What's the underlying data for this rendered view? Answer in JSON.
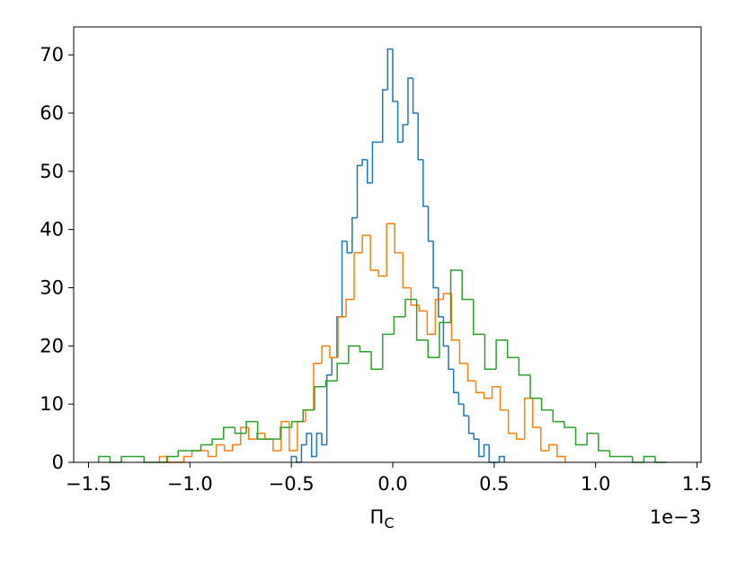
{
  "chart_data": {
    "type": "histogram",
    "histtype": "step",
    "x_label": "Π",
    "x_label_sub": "C",
    "x_offset_text": "1e−3",
    "xlim": [
      -1.573,
      1.52
    ],
    "ylim": [
      0,
      74.8
    ],
    "xticks": [
      {
        "value": -1.5,
        "label": "−1.5"
      },
      {
        "value": -1.0,
        "label": "−1.0"
      },
      {
        "value": -0.5,
        "label": "−0.5"
      },
      {
        "value": 0,
        "label": "0.0"
      },
      {
        "value": 0.5,
        "label": "0.5"
      },
      {
        "value": 1.0,
        "label": "1.0"
      },
      {
        "value": 1.5,
        "label": "1.5"
      }
    ],
    "yticks": [
      0,
      10,
      20,
      30,
      40,
      50,
      60,
      70
    ],
    "series": [
      {
        "color": "#1f77b4",
        "bins": [
          -0.5,
          -0.475,
          -0.45,
          -0.425,
          -0.4,
          -0.375,
          -0.35,
          -0.325,
          -0.3,
          -0.275,
          -0.25,
          -0.225,
          -0.2,
          -0.175,
          -0.15,
          -0.125,
          -0.1,
          -0.075,
          -0.05,
          -0.025,
          0,
          0.025,
          0.05,
          0.075,
          0.1,
          0.125,
          0.15,
          0.175,
          0.2,
          0.225,
          0.25,
          0.275,
          0.3,
          0.325,
          0.35,
          0.375,
          0.4,
          0.425,
          0.45,
          0.475,
          0.5,
          0.525,
          0.55
        ],
        "values": [
          1,
          0,
          3,
          5,
          1,
          5,
          3,
          15,
          18,
          25,
          38,
          36,
          42,
          51,
          52,
          48,
          55,
          55,
          64,
          71,
          62,
          55,
          58,
          66,
          60,
          52,
          44,
          38,
          30,
          25,
          20,
          16,
          12,
          10,
          8,
          5,
          4,
          1,
          3,
          0,
          0,
          1
        ]
      },
      {
        "color": "#ff7f0e",
        "bins": [
          -1.15,
          -1.11,
          -1.07,
          -1.03,
          -0.99,
          -0.95,
          -0.91,
          -0.87,
          -0.83,
          -0.79,
          -0.75,
          -0.71,
          -0.67,
          -0.63,
          -0.59,
          -0.55,
          -0.51,
          -0.47,
          -0.43,
          -0.39,
          -0.35,
          -0.31,
          -0.27,
          -0.23,
          -0.19,
          -0.15,
          -0.11,
          -0.07,
          -0.03,
          0.01,
          0.05,
          0.09,
          0.13,
          0.17,
          0.21,
          0.25,
          0.29,
          0.33,
          0.37,
          0.41,
          0.45,
          0.49,
          0.53,
          0.57,
          0.61,
          0.65,
          0.69,
          0.73,
          0.77,
          0.81,
          0.85
        ],
        "values": [
          1,
          0,
          0,
          1,
          2,
          2,
          1,
          3,
          2,
          3,
          6,
          4,
          5,
          4,
          2,
          7,
          2,
          7,
          9,
          17,
          20,
          18,
          25,
          28,
          36,
          39,
          33,
          32,
          41,
          36,
          30,
          27,
          26,
          22,
          28,
          29,
          21,
          17,
          14,
          12,
          11,
          13,
          9,
          5,
          4,
          11,
          6,
          2,
          3,
          1
        ]
      },
      {
        "color": "#2ca02c",
        "bins": [
          -1.45,
          -1.394,
          -1.338,
          -1.282,
          -1.226,
          -1.17,
          -1.114,
          -1.058,
          -1.002,
          -0.946,
          -0.89,
          -0.834,
          -0.778,
          -0.722,
          -0.666,
          -0.61,
          -0.554,
          -0.498,
          -0.442,
          -0.386,
          -0.33,
          -0.274,
          -0.218,
          -0.162,
          -0.106,
          -0.05,
          0.006,
          0.062,
          0.118,
          0.174,
          0.23,
          0.286,
          0.342,
          0.398,
          0.454,
          0.51,
          0.566,
          0.622,
          0.678,
          0.734,
          0.79,
          0.846,
          0.902,
          0.958,
          1.014,
          1.07,
          1.126,
          1.182,
          1.238,
          1.294,
          1.35
        ],
        "values": [
          1,
          0,
          1,
          1,
          0,
          0,
          1,
          2,
          2,
          3,
          4,
          6,
          5,
          7,
          4,
          4,
          6,
          7,
          9,
          13,
          14,
          17,
          20,
          19,
          16,
          22,
          25,
          28,
          21,
          18,
          24,
          33,
          28,
          22,
          16,
          21,
          18,
          15,
          11,
          9,
          7,
          6,
          3,
          5,
          2,
          1,
          1,
          0,
          1,
          0
        ]
      }
    ]
  }
}
